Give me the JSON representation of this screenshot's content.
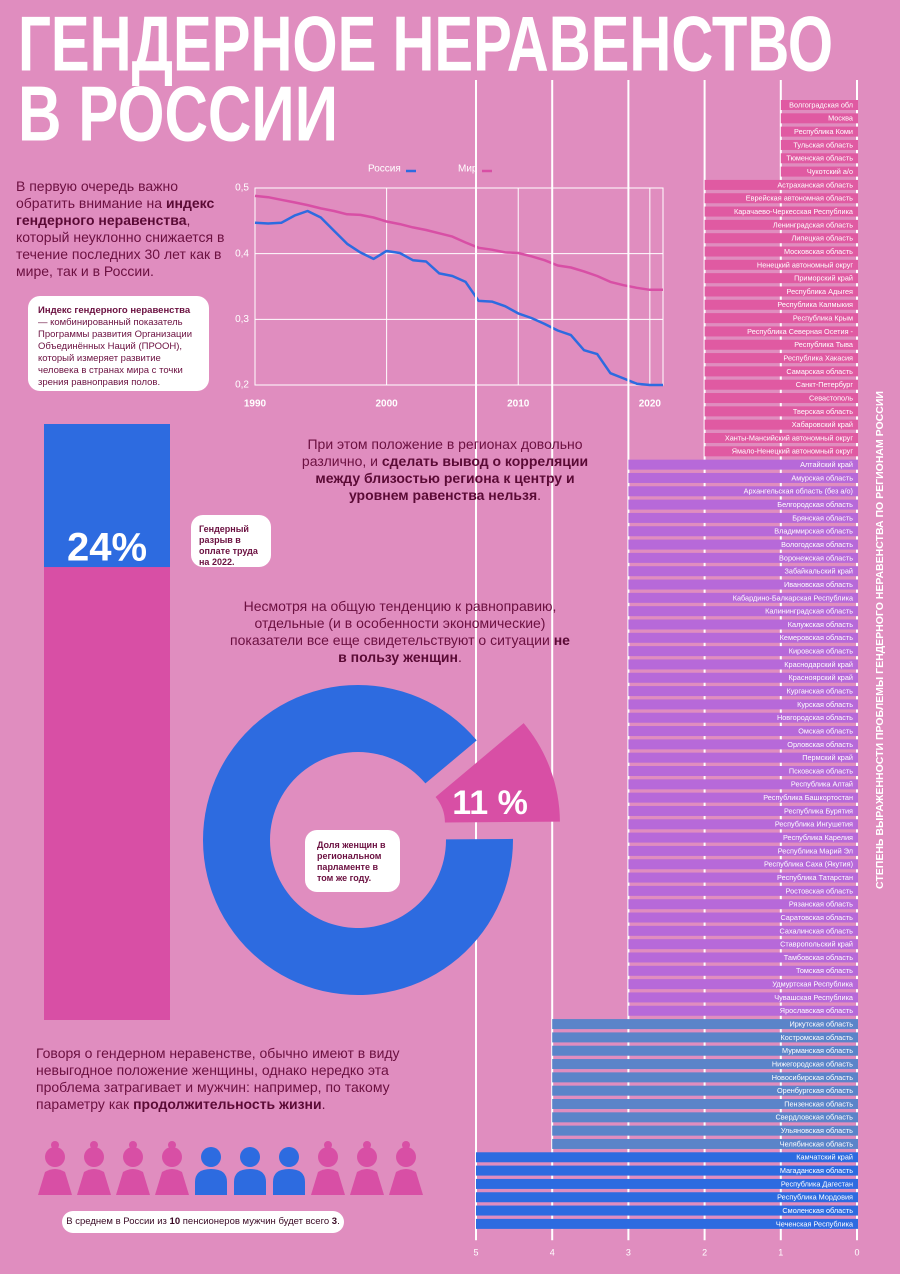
{
  "title": [
    "ГЕНДЕРНОЕ НЕРАВЕНСТВО",
    "В РОССИИ"
  ],
  "intro": [
    {
      "text": "В первую очередь важно обратить внимание на "
    },
    {
      "text": "индекс гендерного неравенства",
      "bold": true
    },
    {
      "text": ", который неуклонно снижается в течение последних 30 лет как в мире, так и в России."
    }
  ],
  "definition": [
    {
      "text": "Индекс гендерного неравенства",
      "bold": true
    },
    {
      "text": " — комбинированный показатель Программы развития Организации Объединённых Наций (ПРООН), который измеряет развитие человека в странах мира с точки зрения равноправия полов."
    }
  ],
  "regions_text": [
    {
      "text": "При этом положение в регионах довольно различно, и "
    },
    {
      "text": "сделать вывод о корреляции между близостью региона к центру и уровнем равенства нельзя",
      "bold": true
    },
    {
      "text": "."
    }
  ],
  "trend_text": [
    {
      "text": "Несмотря на общую тенденцию к равноправию, отдельные (и в особенности экономические) показатели все еще свидетельствуют о ситуации "
    },
    {
      "text": "не в пользу женщин",
      "bold": true
    },
    {
      "text": "."
    }
  ],
  "life_text": [
    {
      "text": "Говоря о гендерном неравенстве, обычно имеют в виду невыгодное положение женщины, однако нередко эта проблема  затрагивает и мужчин: например, по такому параметру как "
    },
    {
      "text": "продолжительность жизни",
      "bold": true
    },
    {
      "text": "."
    }
  ],
  "pensioners": {
    "total": 10,
    "men": 3,
    "men_color": "#2d6be0",
    "women_color": "#d84fa5",
    "note": [
      "В среднем в России из ",
      " пенсионеров мужчин будет всего ",
      "."
    ]
  },
  "chart_data": [
    {
      "type": "line",
      "x": [
        1990,
        1991,
        1992,
        1993,
        1994,
        1995,
        1996,
        1997,
        1998,
        1999,
        2000,
        2001,
        2002,
        2003,
        2004,
        2005,
        2006,
        2007,
        2008,
        2009,
        2010,
        2011,
        2012,
        2013,
        2014,
        2015,
        2016,
        2017,
        2018,
        2019,
        2020,
        2021
      ],
      "xlim": [
        1990,
        2021
      ],
      "xticks": [
        1990,
        2000,
        2010,
        2020
      ],
      "ylim": [
        0.2,
        0.5
      ],
      "yticks": [
        {
          "value": 0.2,
          "label": "0,2"
        },
        {
          "value": 0.3,
          "label": "0,3"
        },
        {
          "value": 0.4,
          "label": "0,4"
        },
        {
          "value": 0.5,
          "label": "0,5"
        }
      ],
      "grid": true,
      "series": [
        {
          "name": "Россия",
          "color": "#2d6be0",
          "values": [
            0.447,
            0.446,
            0.447,
            0.458,
            0.465,
            0.455,
            0.435,
            0.415,
            0.402,
            0.392,
            0.404,
            0.401,
            0.39,
            0.388,
            0.37,
            0.366,
            0.357,
            0.328,
            0.327,
            0.32,
            0.309,
            0.302,
            0.293,
            0.283,
            0.276,
            0.253,
            0.247,
            0.218,
            0.21,
            0.202,
            0.2,
            0.2
          ]
        },
        {
          "name": "Мир",
          "color": "#d84fa5",
          "values": [
            0.488,
            0.486,
            0.482,
            0.478,
            0.474,
            0.469,
            0.465,
            0.46,
            0.459,
            0.455,
            0.449,
            0.445,
            0.44,
            0.436,
            0.431,
            0.426,
            0.417,
            0.409,
            0.406,
            0.402,
            0.401,
            0.396,
            0.39,
            0.382,
            0.379,
            0.373,
            0.366,
            0.357,
            0.352,
            0.348,
            0.345,
            0.345
          ]
        }
      ]
    },
    {
      "type": "hbar",
      "axis_title": "СТЕПЕНЬ ВЫРАЖЕННОСТИ ПРОБЛЕМЫ ГЕНДЕРНОГО НЕРАВЕНСТВА ПО РЕГИОНАМ РОССИИ",
      "xlim": [
        0,
        5
      ],
      "xticks": [
        5,
        4,
        3,
        2,
        1,
        0
      ],
      "reversed": true,
      "grid": true,
      "level_colors": [
        "#e05aa2",
        "#e05aa2",
        "#b769d9",
        "#5b84c9",
        "#2d6be0"
      ],
      "categories": [
        "Волгоградская обл",
        "Москва",
        "Республика Коми",
        "Тульская область",
        "Тюменская область",
        "Чукотский а/о",
        "Астраханская область",
        "Еврейская автономная область",
        "Карачаево-Черкесская Республика",
        "Ленинградская область",
        "Липецкая область",
        "Московская область",
        "Ненецкий автономный округ",
        "Приморский край",
        "Республика Адыгея",
        "Республика Калмыкия",
        "Республика Крым",
        "Республика Северная Осетия -",
        "Республика Тыва",
        "Республика Хакасия",
        "Самарская область",
        "Санкт-Петербург",
        "Севастополь",
        "Тверская область",
        "Хабаровский край",
        "Ханты-Мансийский автономный округ",
        "Ямало-Ненецкий автономный округ",
        "Алтайский край",
        "Амурская область",
        "Архангельская область (без а/о)",
        "Белгородская область",
        "Брянская область",
        "Владимирская область",
        "Вологодская область",
        "Воронежская область",
        "Забайкальский край",
        "Ивановская область",
        "Кабардино-Балкарская Республика",
        "Калининградская область",
        "Калужская область",
        "Кемеровская область",
        "Кировская область",
        "Краснодарский край",
        "Красноярский край",
        "Курганская область",
        "Курская область",
        "Новгородская область",
        "Омская область",
        "Орловская область",
        "Пермский край",
        "Псковская область",
        "Республика Алтай",
        "Республика Башкортостан",
        "Республика Бурятия",
        "Республика Ингушетия",
        "Республика Карелия",
        "Республика Марий Эл",
        "Республика Саха (Якутия)",
        "Республика Татарстан",
        "Ростовская область",
        "Рязанская область",
        "Саратовская область",
        "Сахалинская область",
        "Ставропольский край",
        "Тамбовская область",
        "Томская область",
        "Удмуртская Республика",
        "Чувашская Республика",
        "Ярославская область",
        "Иркутская область",
        "Костромская область",
        "Мурманская область",
        "Нижегородская область",
        "Новосибирская область",
        "Оренбургская область",
        "Пензенская область",
        "Свердловская область",
        "Ульяновская область",
        "Челябинская область",
        "Камчатский край",
        "Магаданская область",
        "Республика Дагестан",
        "Республика Мордовия",
        "Смоленская область",
        "Чеченская Республика"
      ],
      "values": [
        1,
        1,
        1,
        1,
        1,
        1,
        2,
        2,
        2,
        2,
        2,
        2,
        2,
        2,
        2,
        2,
        2,
        2,
        2,
        2,
        2,
        2,
        2,
        2,
        2,
        2,
        2,
        3,
        3,
        3,
        3,
        3,
        3,
        3,
        3,
        3,
        3,
        3,
        3,
        3,
        3,
        3,
        3,
        3,
        3,
        3,
        3,
        3,
        3,
        3,
        3,
        3,
        3,
        3,
        3,
        3,
        3,
        3,
        3,
        3,
        3,
        3,
        3,
        3,
        3,
        3,
        3,
        3,
        3,
        4,
        4,
        4,
        4,
        4,
        4,
        4,
        4,
        4,
        4,
        5,
        5,
        5,
        5,
        5,
        5
      ]
    },
    {
      "type": "progress",
      "value": 24,
      "value_label": "24%",
      "label": "Гендерный разрыв в оплате труда на 2022.",
      "color": "#2d6be0",
      "track_color": "#d84fa5"
    },
    {
      "type": "donut",
      "value": 11,
      "value_label": "11 %",
      "label": "Доля женщин в региональном парламенте в том же году.",
      "color": "#d84fa5",
      "rest_color": "#2d6be0"
    }
  ]
}
